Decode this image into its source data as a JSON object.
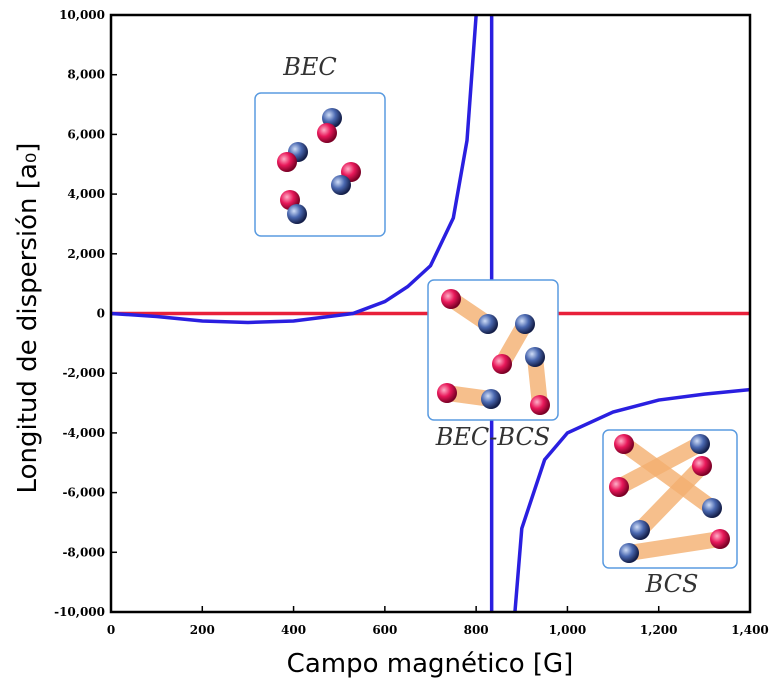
{
  "chart_data": {
    "type": "line",
    "xlabel": "Campo magnético [G]",
    "ylabel": "Longitud de dispersión [a₀]",
    "xlim": [
      0,
      1400
    ],
    "ylim": [
      -10000,
      10000
    ],
    "xticks": [
      0,
      200,
      400,
      600,
      800,
      {
        "value": 1000,
        "label": "1,000"
      },
      {
        "value": 1200,
        "label": "1,200"
      },
      {
        "value": 1400,
        "label": "1,400"
      }
    ],
    "yticks": [
      {
        "value": -10000,
        "label": "-10,000"
      },
      {
        "value": -8000,
        "label": "-8,000"
      },
      {
        "value": -6000,
        "label": "-6,000"
      },
      {
        "value": -4000,
        "label": "-4,000"
      },
      {
        "value": -2000,
        "label": "-2,000"
      },
      0,
      {
        "value": 2000,
        "label": "2,000"
      },
      {
        "value": 4000,
        "label": "4,000"
      },
      {
        "value": 6000,
        "label": "6,000"
      },
      {
        "value": 8000,
        "label": "8,000"
      },
      {
        "value": 10000,
        "label": "10,000"
      }
    ],
    "series": [
      {
        "color": "#e8203a",
        "x": [
          0,
          1400
        ],
        "values": [
          0,
          0
        ]
      },
      {
        "color": "#2a1fe0",
        "x": [
          0,
          100,
          200,
          300,
          400,
          500,
          530,
          600,
          650,
          700,
          750,
          780,
          800,
          834,
          885,
          900,
          950,
          1000,
          1100,
          1200,
          1300,
          1400
        ],
        "values": [
          0,
          -100,
          -250,
          -300,
          -250,
          -60,
          0,
          400,
          900,
          1600,
          3200,
          5800,
          10000,
          null,
          -10000,
          -7200,
          -4900,
          -4000,
          -3300,
          -2900,
          -2700,
          -2550
        ]
      },
      {
        "color": "#2a1fe0",
        "x": [
          834,
          834
        ],
        "values": [
          -10000,
          10000
        ]
      }
    ],
    "annotations": [
      {
        "text": "BEC"
      },
      {
        "text": "BEC-BCS"
      },
      {
        "text": "BCS"
      }
    ]
  }
}
